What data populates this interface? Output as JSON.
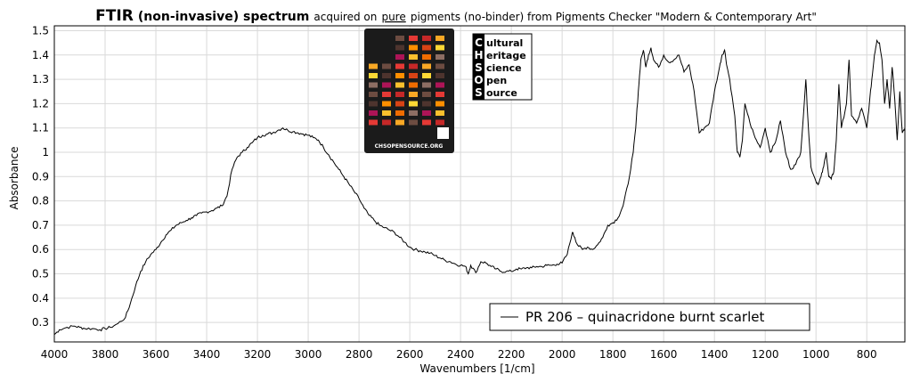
{
  "title": {
    "bold": "FTIR",
    "bold_paren": "(non-invasive) spectrum",
    "rest_a": "acquired on",
    "underlined": "pure",
    "rest_b": "pigments (no-binder) from Pigments Checker \"Modern & Contemporary Art\""
  },
  "logo": {
    "letters": [
      "C",
      "H",
      "S",
      "O",
      "S"
    ],
    "words": [
      "ultural",
      "eritage",
      "cience",
      "pen",
      "ource"
    ],
    "checker_caption": "CHSOPENSOURCE.ORG"
  },
  "chart_data": {
    "type": "line",
    "xlabel": "Wavenumbers [1/cm]",
    "ylabel": "Absorbance",
    "xlim": [
      4000,
      650
    ],
    "ylim": [
      0.22,
      1.52
    ],
    "x_inverted": true,
    "x_ticks": [
      4000,
      3800,
      3600,
      3400,
      3200,
      3000,
      2800,
      2600,
      2400,
      2200,
      2000,
      1800,
      1600,
      1400,
      1200,
      1000,
      800
    ],
    "y_ticks": [
      0.3,
      0.4,
      0.5,
      0.6,
      0.7,
      0.8,
      0.9,
      1,
      1.1,
      1.2,
      1.3,
      1.4,
      1.5
    ],
    "y_tick_labels": [
      "0.3",
      "0.4",
      "0.5",
      "0.6",
      "0.7",
      "0.8",
      "0.9",
      "1",
      "1.1",
      "1.2",
      "1.3",
      "1.4",
      "1.5"
    ],
    "grid": true,
    "legend_placement": "bottom-right",
    "series": [
      {
        "name": "PR 206 – quinacridone burnt scarlet",
        "color": "#000000",
        "points": [
          [
            4000,
            0.25
          ],
          [
            3980,
            0.27
          ],
          [
            3950,
            0.28
          ],
          [
            3920,
            0.285
          ],
          [
            3900,
            0.28
          ],
          [
            3880,
            0.275
          ],
          [
            3850,
            0.275
          ],
          [
            3820,
            0.27
          ],
          [
            3800,
            0.275
          ],
          [
            3780,
            0.28
          ],
          [
            3750,
            0.295
          ],
          [
            3720,
            0.32
          ],
          [
            3700,
            0.38
          ],
          [
            3680,
            0.45
          ],
          [
            3660,
            0.51
          ],
          [
            3640,
            0.55
          ],
          [
            3620,
            0.58
          ],
          [
            3600,
            0.6
          ],
          [
            3580,
            0.63
          ],
          [
            3560,
            0.66
          ],
          [
            3540,
            0.68
          ],
          [
            3520,
            0.7
          ],
          [
            3500,
            0.71
          ],
          [
            3480,
            0.72
          ],
          [
            3460,
            0.73
          ],
          [
            3440,
            0.74
          ],
          [
            3420,
            0.75
          ],
          [
            3400,
            0.755
          ],
          [
            3380,
            0.76
          ],
          [
            3360,
            0.77
          ],
          [
            3340,
            0.78
          ],
          [
            3320,
            0.82
          ],
          [
            3300,
            0.93
          ],
          [
            3280,
            0.98
          ],
          [
            3260,
            1.0
          ],
          [
            3240,
            1.02
          ],
          [
            3220,
            1.04
          ],
          [
            3200,
            1.06
          ],
          [
            3180,
            1.07
          ],
          [
            3160,
            1.075
          ],
          [
            3140,
            1.08
          ],
          [
            3120,
            1.09
          ],
          [
            3100,
            1.1
          ],
          [
            3080,
            1.09
          ],
          [
            3060,
            1.085
          ],
          [
            3040,
            1.08
          ],
          [
            3020,
            1.075
          ],
          [
            3000,
            1.07
          ],
          [
            2980,
            1.06
          ],
          [
            2960,
            1.05
          ],
          [
            2940,
            1.02
          ],
          [
            2920,
            0.99
          ],
          [
            2900,
            0.96
          ],
          [
            2880,
            0.93
          ],
          [
            2860,
            0.9
          ],
          [
            2840,
            0.87
          ],
          [
            2820,
            0.84
          ],
          [
            2800,
            0.81
          ],
          [
            2780,
            0.77
          ],
          [
            2760,
            0.74
          ],
          [
            2740,
            0.72
          ],
          [
            2720,
            0.7
          ],
          [
            2700,
            0.69
          ],
          [
            2680,
            0.68
          ],
          [
            2660,
            0.67
          ],
          [
            2640,
            0.65
          ],
          [
            2620,
            0.63
          ],
          [
            2600,
            0.61
          ],
          [
            2580,
            0.6
          ],
          [
            2560,
            0.595
          ],
          [
            2540,
            0.59
          ],
          [
            2520,
            0.585
          ],
          [
            2500,
            0.575
          ],
          [
            2480,
            0.565
          ],
          [
            2460,
            0.555
          ],
          [
            2440,
            0.55
          ],
          [
            2420,
            0.54
          ],
          [
            2400,
            0.535
          ],
          [
            2380,
            0.53
          ],
          [
            2370,
            0.5
          ],
          [
            2360,
            0.535
          ],
          [
            2340,
            0.505
          ],
          [
            2320,
            0.55
          ],
          [
            2300,
            0.545
          ],
          [
            2280,
            0.53
          ],
          [
            2260,
            0.52
          ],
          [
            2240,
            0.51
          ],
          [
            2220,
            0.51
          ],
          [
            2200,
            0.51
          ],
          [
            2180,
            0.52
          ],
          [
            2160,
            0.52
          ],
          [
            2140,
            0.525
          ],
          [
            2120,
            0.525
          ],
          [
            2100,
            0.53
          ],
          [
            2080,
            0.53
          ],
          [
            2060,
            0.535
          ],
          [
            2040,
            0.535
          ],
          [
            2020,
            0.54
          ],
          [
            2000,
            0.545
          ],
          [
            1980,
            0.58
          ],
          [
            1960,
            0.67
          ],
          [
            1950,
            0.65
          ],
          [
            1940,
            0.62
          ],
          [
            1920,
            0.6
          ],
          [
            1900,
            0.61
          ],
          [
            1880,
            0.6
          ],
          [
            1860,
            0.62
          ],
          [
            1840,
            0.65
          ],
          [
            1820,
            0.7
          ],
          [
            1800,
            0.71
          ],
          [
            1780,
            0.73
          ],
          [
            1760,
            0.78
          ],
          [
            1740,
            0.87
          ],
          [
            1720,
            1.0
          ],
          [
            1710,
            1.1
          ],
          [
            1700,
            1.25
          ],
          [
            1690,
            1.38
          ],
          [
            1680,
            1.42
          ],
          [
            1670,
            1.35
          ],
          [
            1660,
            1.4
          ],
          [
            1650,
            1.43
          ],
          [
            1640,
            1.38
          ],
          [
            1620,
            1.35
          ],
          [
            1600,
            1.4
          ],
          [
            1580,
            1.37
          ],
          [
            1560,
            1.38
          ],
          [
            1540,
            1.4
          ],
          [
            1520,
            1.33
          ],
          [
            1500,
            1.36
          ],
          [
            1480,
            1.25
          ],
          [
            1460,
            1.08
          ],
          [
            1440,
            1.1
          ],
          [
            1420,
            1.12
          ],
          [
            1400,
            1.25
          ],
          [
            1380,
            1.35
          ],
          [
            1370,
            1.4
          ],
          [
            1360,
            1.42
          ],
          [
            1350,
            1.35
          ],
          [
            1340,
            1.3
          ],
          [
            1320,
            1.15
          ],
          [
            1310,
            1.0
          ],
          [
            1300,
            0.98
          ],
          [
            1290,
            1.05
          ],
          [
            1280,
            1.2
          ],
          [
            1260,
            1.12
          ],
          [
            1240,
            1.06
          ],
          [
            1220,
            1.02
          ],
          [
            1200,
            1.1
          ],
          [
            1180,
            1.0
          ],
          [
            1160,
            1.04
          ],
          [
            1140,
            1.13
          ],
          [
            1120,
            1.0
          ],
          [
            1100,
            0.93
          ],
          [
            1080,
            0.95
          ],
          [
            1060,
            1.0
          ],
          [
            1040,
            1.3
          ],
          [
            1030,
            1.1
          ],
          [
            1020,
            0.94
          ],
          [
            1000,
            0.88
          ],
          [
            990,
            0.87
          ],
          [
            980,
            0.9
          ],
          [
            970,
            0.94
          ],
          [
            960,
            1.0
          ],
          [
            950,
            0.9
          ],
          [
            940,
            0.89
          ],
          [
            930,
            0.92
          ],
          [
            920,
            1.05
          ],
          [
            910,
            1.28
          ],
          [
            900,
            1.1
          ],
          [
            880,
            1.2
          ],
          [
            870,
            1.38
          ],
          [
            860,
            1.15
          ],
          [
            840,
            1.12
          ],
          [
            820,
            1.18
          ],
          [
            800,
            1.1
          ],
          [
            790,
            1.2
          ],
          [
            780,
            1.3
          ],
          [
            770,
            1.4
          ],
          [
            760,
            1.46
          ],
          [
            750,
            1.45
          ],
          [
            740,
            1.38
          ],
          [
            730,
            1.2
          ],
          [
            720,
            1.3
          ],
          [
            710,
            1.18
          ],
          [
            700,
            1.35
          ],
          [
            690,
            1.22
          ],
          [
            680,
            1.05
          ],
          [
            670,
            1.25
          ],
          [
            660,
            1.08
          ],
          [
            650,
            1.1
          ]
        ]
      }
    ]
  }
}
